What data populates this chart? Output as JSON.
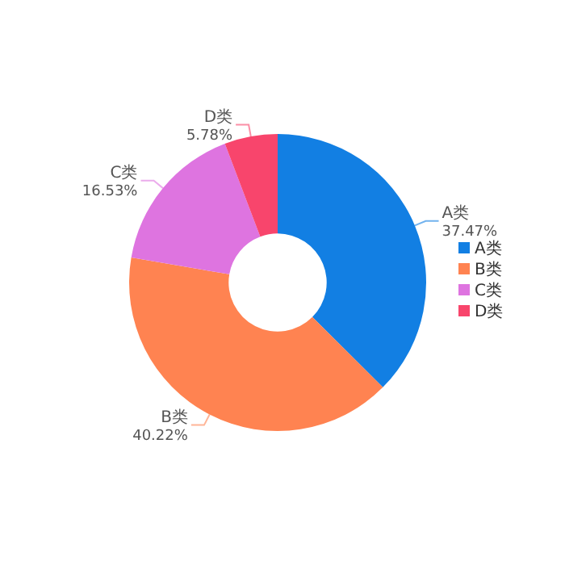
{
  "chart_data": {
    "type": "donut",
    "categories": [
      "A类",
      "B类",
      "C类",
      "D类"
    ],
    "values": [
      37.47,
      40.22,
      16.53,
      5.78
    ],
    "colors": [
      "#127fe3",
      "#ff8351",
      "#de74e0",
      "#f8456c"
    ],
    "value_labels": [
      "37.47%",
      "40.22%",
      "16.53%",
      "5.78%"
    ],
    "data_labels": true,
    "legend": "right"
  }
}
